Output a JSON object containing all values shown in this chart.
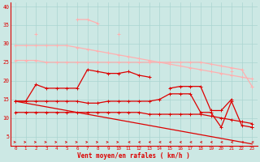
{
  "x": [
    0,
    1,
    2,
    3,
    4,
    5,
    6,
    7,
    8,
    9,
    10,
    11,
    12,
    13,
    14,
    15,
    16,
    17,
    18,
    19,
    20,
    21,
    22,
    23
  ],
  "line1": [
    29.5,
    29.5,
    29.5,
    29.5,
    29.5,
    29.5,
    29.0,
    28.5,
    28.0,
    27.5,
    27.0,
    26.5,
    26.0,
    25.5,
    25.0,
    24.5,
    24.0,
    23.5,
    23.0,
    22.5,
    22.0,
    21.5,
    21.0,
    20.5
  ],
  "line2": [
    25.5,
    25.5,
    25.5,
    25.0,
    25.0,
    25.0,
    25.0,
    25.0,
    25.0,
    25.0,
    25.0,
    25.0,
    25.0,
    25.0,
    25.0,
    25.0,
    25.0,
    25.0,
    25.0,
    24.5,
    24.0,
    23.5,
    23.0,
    18.5
  ],
  "line3": [
    null,
    null,
    32.5,
    null,
    null,
    null,
    36.5,
    36.5,
    35.5,
    null,
    32.5,
    null,
    null,
    null,
    null,
    null,
    null,
    null,
    null,
    null,
    null,
    22.5,
    null,
    18.5
  ],
  "line4": [
    14.5,
    14.5,
    19.0,
    18.0,
    18.0,
    18.0,
    18.0,
    23.0,
    22.5,
    22.0,
    22.0,
    22.5,
    21.5,
    21.0,
    null,
    18.0,
    18.5,
    18.5,
    18.5,
    12.0,
    12.0,
    15.0,
    null,
    7.5
  ],
  "line5": [
    14.5,
    14.5,
    14.5,
    14.5,
    14.5,
    14.5,
    14.5,
    14.0,
    14.0,
    14.5,
    14.5,
    14.5,
    14.5,
    14.5,
    15.0,
    16.5,
    16.5,
    16.5,
    11.5,
    11.5,
    7.5,
    14.5,
    8.0,
    7.5
  ],
  "line6": [
    11.5,
    11.5,
    11.5,
    11.5,
    11.5,
    11.5,
    11.5,
    11.5,
    11.5,
    11.5,
    11.5,
    11.5,
    11.5,
    11.0,
    11.0,
    11.0,
    11.0,
    11.0,
    11.0,
    10.5,
    10.0,
    9.5,
    9.0,
    8.5
  ],
  "line7": [
    14.5,
    14.0,
    13.5,
    13.0,
    12.5,
    12.0,
    11.5,
    11.0,
    10.5,
    10.0,
    9.5,
    9.0,
    8.5,
    8.0,
    7.5,
    7.0,
    6.5,
    6.0,
    5.5,
    5.0,
    4.5,
    4.0,
    3.5,
    3.0
  ],
  "bg_color": "#cce8e4",
  "grid_color": "#aad4d0",
  "line1_color": "#ffb0b0",
  "line2_color": "#ffb0b0",
  "line3_color": "#ffb0b0",
  "line4_color": "#dd0000",
  "line5_color": "#dd0000",
  "line6_color": "#dd0000",
  "line7_color": "#dd0000",
  "arrow_color": "#dd0000",
  "xlabel": "Vent moyen/en rafales ( km/h )",
  "ylabel_ticks": [
    5,
    10,
    15,
    20,
    25,
    30,
    35,
    40
  ],
  "xlim": [
    -0.5,
    23.5
  ],
  "ylim": [
    2.5,
    41
  ]
}
